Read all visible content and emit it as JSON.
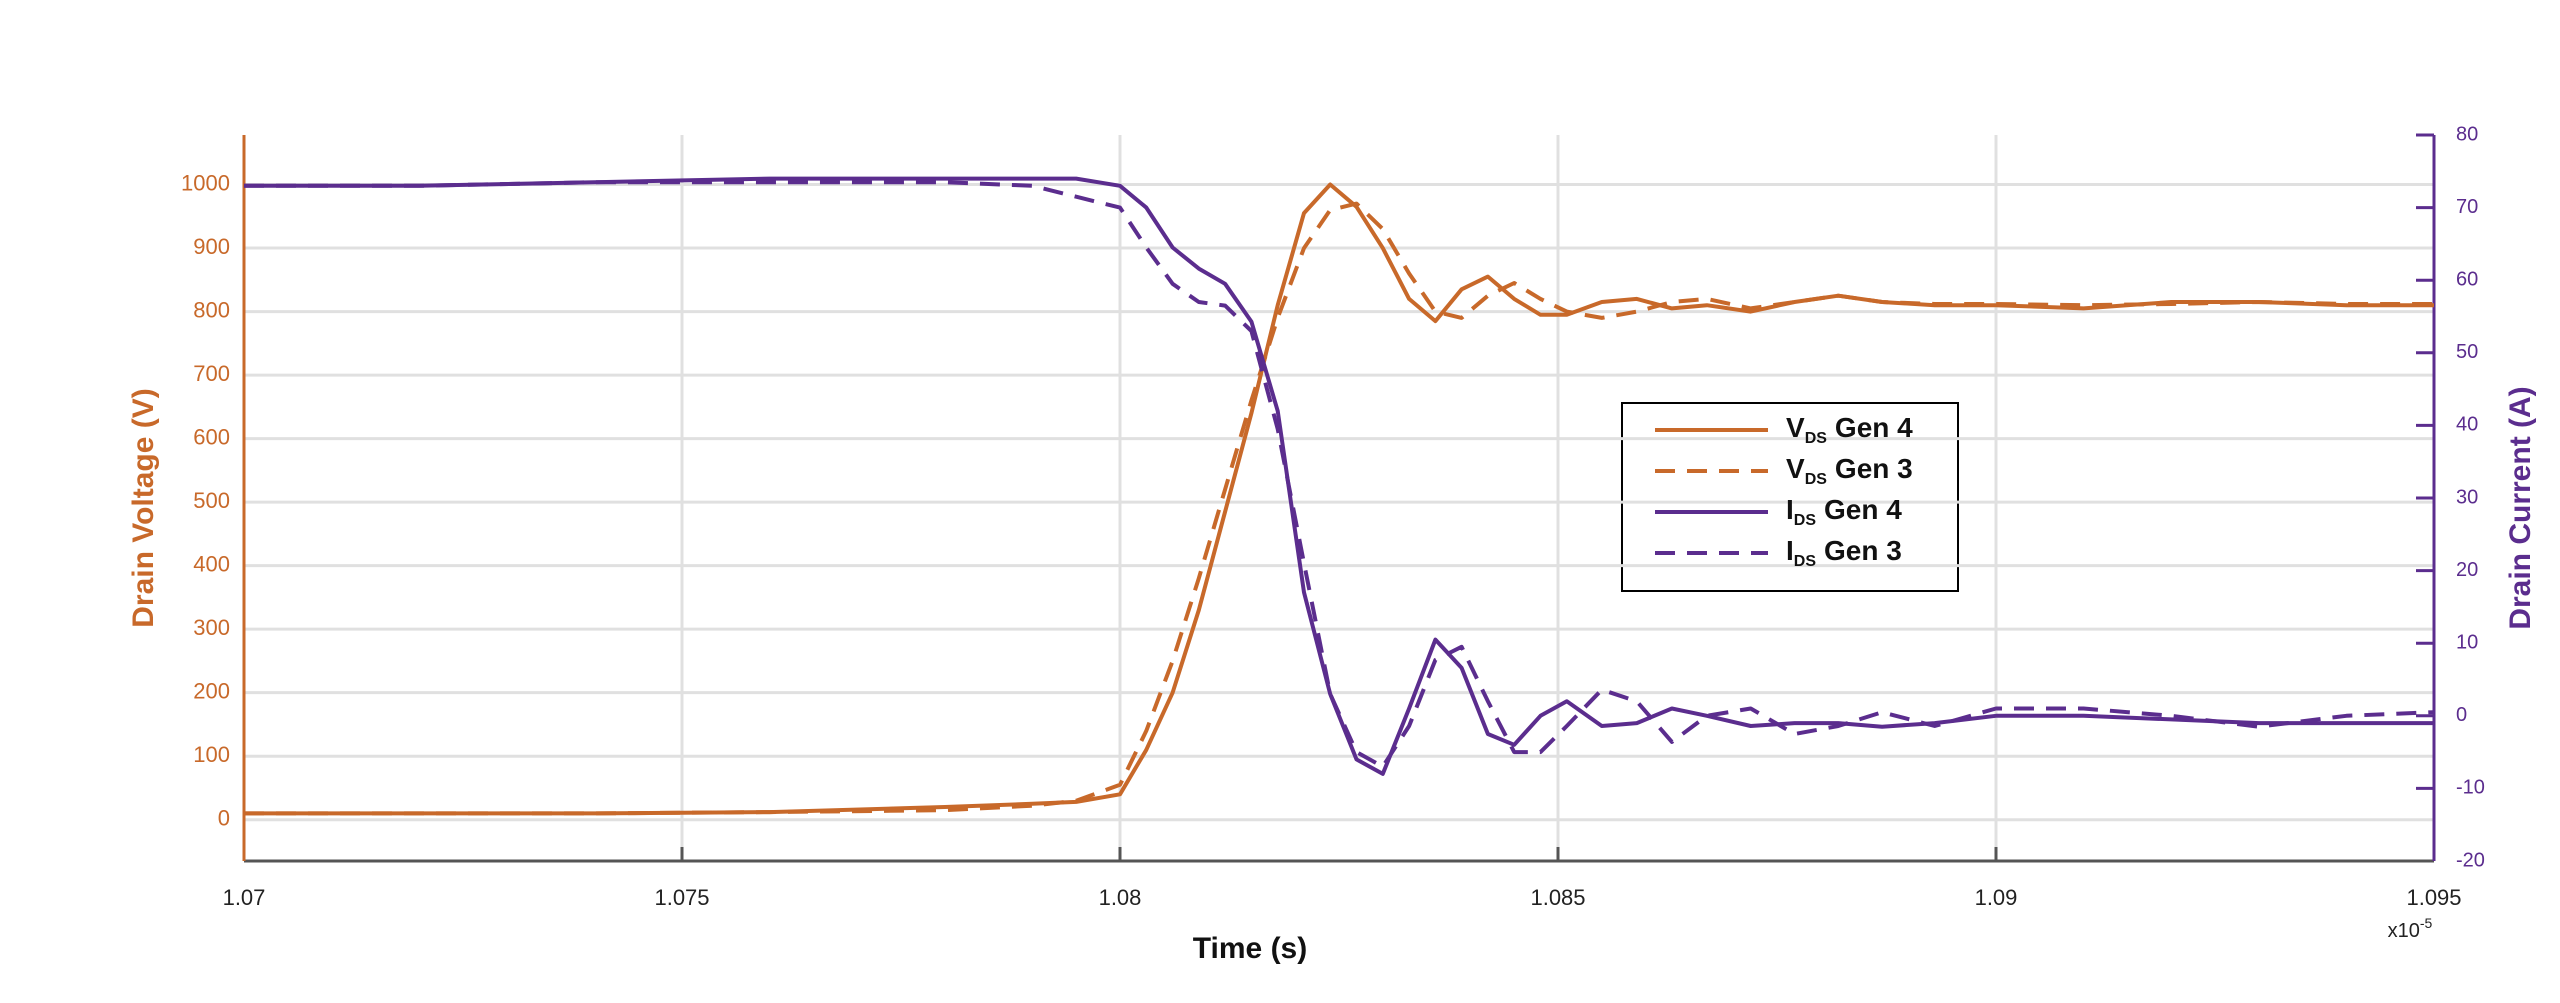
{
  "chart_data": {
    "type": "line",
    "x_label": "Time (s)",
    "x_scale_text": "x10",
    "x_scale_exponent": "-5",
    "y_label": "Drain Voltage (V)",
    "y2_label": "Drain Current (A)",
    "y_color": "#c8692a",
    "y2_color": "#5b2d8e",
    "grid": true,
    "x": [
      1.07,
      1.072,
      1.074,
      1.076,
      1.078,
      1.079,
      1.0795,
      1.08,
      1.0803,
      1.0806,
      1.0809,
      1.0812,
      1.0815,
      1.0818,
      1.0821,
      1.0824,
      1.0827,
      1.083,
      1.0833,
      1.0836,
      1.0839,
      1.0842,
      1.0845,
      1.0848,
      1.0851,
      1.0855,
      1.0859,
      1.0863,
      1.0867,
      1.0872,
      1.0877,
      1.0882,
      1.0887,
      1.0893,
      1.09,
      1.091,
      1.092,
      1.093,
      1.094,
      1.095
    ],
    "xlim": [
      1.07,
      1.095
    ],
    "xticks": [
      1.07,
      1.075,
      1.08,
      1.085,
      1.09,
      1.095
    ],
    "ylim": [
      -65,
      1078
    ],
    "yticks": [
      0,
      100,
      200,
      300,
      400,
      500,
      600,
      700,
      800,
      900,
      1000
    ],
    "y2lim": [
      -20,
      80
    ],
    "y2ticks": [
      -20,
      -10,
      0,
      10,
      20,
      30,
      40,
      50,
      60,
      70,
      80
    ],
    "series": [
      {
        "name": [
          "V",
          "DS",
          "Gen 4"
        ],
        "color": "#c8692a",
        "dashed": false,
        "values": [
          10,
          10,
          10,
          12,
          20,
          25,
          28,
          40,
          110,
          200,
          330,
          485,
          640,
          810,
          955,
          1000,
          965,
          900,
          820,
          785,
          835,
          855,
          820,
          795,
          795,
          815,
          820,
          805,
          810,
          800,
          815,
          825,
          815,
          810,
          810,
          805,
          815,
          815,
          810,
          810
        ]
      },
      {
        "name": [
          "V",
          "DS",
          "Gen 3"
        ],
        "color": "#c8692a",
        "dashed": true,
        "values": [
          10,
          10,
          10,
          12,
          15,
          22,
          30,
          55,
          140,
          250,
          380,
          520,
          660,
          790,
          900,
          960,
          970,
          930,
          860,
          800,
          790,
          825,
          845,
          820,
          800,
          790,
          800,
          815,
          820,
          805,
          815,
          825,
          815,
          812,
          812,
          810,
          812,
          815,
          812,
          812
        ]
      },
      {
        "name": [
          "I",
          "DS",
          "Gen 4"
        ],
        "color": "#5b2d8e",
        "dashed": false,
        "axis": "y2",
        "values": [
          73,
          73,
          73.5,
          74,
          74,
          74,
          74,
          73,
          70,
          64.5,
          61.6,
          59.5,
          54.3,
          42,
          17,
          3,
          -6,
          -8,
          1,
          10.5,
          6.6,
          -2.5,
          -4,
          0,
          2,
          -1.4,
          -1,
          1,
          0,
          -1.4,
          -1,
          -1,
          -1.5,
          -1,
          0,
          0,
          -0.5,
          -1,
          -1,
          -1
        ]
      },
      {
        "name": [
          "I",
          "DS",
          "Gen 3"
        ],
        "color": "#5b2d8e",
        "dashed": true,
        "axis": "y2",
        "values": [
          73,
          73,
          73.5,
          73.5,
          73.5,
          73,
          71.5,
          70,
          64.5,
          59.5,
          57,
          56.5,
          53,
          39.5,
          21,
          3,
          -5,
          -7,
          -1.4,
          7.7,
          9.5,
          2,
          -5,
          -5,
          -1.4,
          3.6,
          2,
          -3.6,
          0,
          1,
          -2.5,
          -1.4,
          0.5,
          -1.4,
          1,
          1,
          0,
          -1.5,
          0,
          0.5
        ]
      }
    ]
  }
}
